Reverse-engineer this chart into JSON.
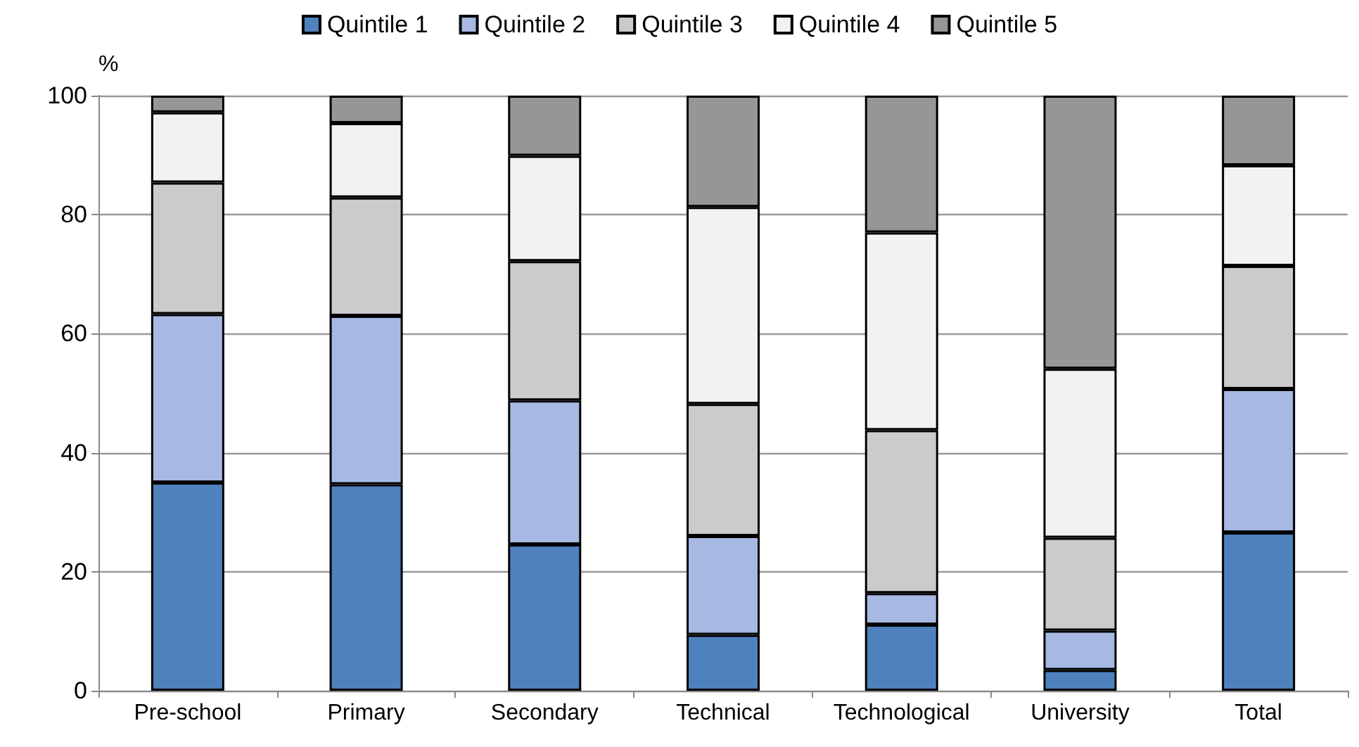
{
  "chart_data": {
    "type": "bar",
    "stacked": true,
    "ylabel": "%",
    "categories": [
      "Pre-school",
      "Primary",
      "Secondary",
      "Technical",
      "Technological",
      "University",
      "Total"
    ],
    "series": [
      {
        "name": "Quintile 1",
        "color": "#4f81bd",
        "values": [
          35.0,
          34.7,
          24.6,
          9.4,
          11.1,
          3.5,
          26.6
        ]
      },
      {
        "name": "Quintile 2",
        "color": "#a7b9e3",
        "values": [
          28.3,
          28.3,
          24.2,
          16.6,
          5.3,
          6.6,
          24.1
        ]
      },
      {
        "name": "Quintile 3",
        "color": "#cbcbcb",
        "values": [
          22.1,
          19.9,
          23.4,
          22.2,
          27.4,
          15.6,
          20.7
        ]
      },
      {
        "name": "Quintile 4",
        "color": "#f2f2f2",
        "values": [
          11.8,
          12.5,
          17.7,
          33.1,
          33.2,
          28.4,
          16.9
        ]
      },
      {
        "name": "Quintile 5",
        "color": "#969696",
        "values": [
          2.8,
          4.6,
          10.1,
          18.7,
          23.0,
          45.9,
          11.7
        ]
      }
    ],
    "ylim": [
      0,
      100
    ],
    "yticks": [
      0,
      20,
      40,
      60,
      80,
      100
    ],
    "grid": "y",
    "legend": "top"
  }
}
